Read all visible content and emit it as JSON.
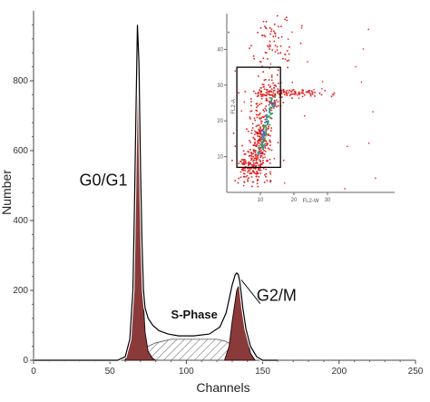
{
  "chart_data": [
    {
      "type": "area",
      "xlabel": "Channels",
      "ylabel": "Number",
      "xlim": [
        0,
        250
      ],
      "ylim": [
        0,
        1000
      ],
      "xticks": [
        0,
        50,
        100,
        150,
        200,
        250
      ],
      "yticks": [
        0,
        200,
        400,
        600,
        800
      ],
      "annotations": [
        {
          "text": "G0/G1",
          "x": 30,
          "y": 500
        },
        {
          "text": "S-Phase",
          "x": 90,
          "y": 120
        },
        {
          "text": "G2/M",
          "x": 146,
          "y": 170
        }
      ],
      "colors": {
        "peak_fill": "#8b3a3a",
        "peak_stroke": "#2a0d0d",
        "hatch": "#555555",
        "envelope": "#000000"
      },
      "series": [
        {
          "role": "envelope",
          "x": [
            0,
            55,
            60,
            63,
            65,
            66,
            67,
            68,
            69,
            70,
            71,
            72,
            73,
            75,
            78,
            82,
            88,
            95,
            105,
            115,
            122,
            126,
            128,
            130,
            132,
            133,
            134,
            135,
            136,
            137,
            139,
            142,
            146,
            150,
            160
          ],
          "y": [
            0,
            0,
            10,
            60,
            200,
            420,
            700,
            960,
            850,
            550,
            330,
            200,
            150,
            120,
            100,
            85,
            75,
            70,
            70,
            75,
            95,
            135,
            175,
            215,
            245,
            250,
            245,
            225,
            190,
            150,
            90,
            40,
            10,
            0,
            0
          ]
        },
        {
          "role": "G0/G1 peak",
          "x": [
            60,
            63,
            65,
            66,
            67,
            68,
            69,
            70,
            71,
            72,
            73,
            75,
            78,
            80
          ],
          "y": [
            0,
            50,
            190,
            400,
            680,
            940,
            820,
            520,
            300,
            160,
            80,
            25,
            5,
            0
          ]
        },
        {
          "role": "S-Phase",
          "x": [
            65,
            70,
            75,
            80,
            90,
            100,
            110,
            120,
            125,
            130,
            135,
            140
          ],
          "y": [
            0,
            20,
            40,
            50,
            60,
            60,
            60,
            60,
            55,
            45,
            30,
            0
          ]
        },
        {
          "role": "G2/M peak",
          "x": [
            125,
            128,
            130,
            132,
            133,
            134,
            135,
            136,
            137,
            139,
            142,
            145
          ],
          "y": [
            0,
            40,
            110,
            170,
            200,
            210,
            200,
            175,
            140,
            80,
            20,
            0
          ]
        }
      ]
    },
    {
      "type": "scatter",
      "xlabel": "FL2-W",
      "ylabel": "FL2-A",
      "xlim": [
        0,
        50
      ],
      "ylim": [
        0,
        50
      ],
      "xticks": [
        10,
        20,
        30
      ],
      "yticks": [
        10,
        20,
        30,
        40
      ],
      "point_color": "#e02020",
      "gate": {
        "x": [
          3,
          16
        ],
        "y": [
          7,
          35
        ]
      },
      "clusters": [
        {
          "cx": 7,
          "cy": 8,
          "sx": 2.5,
          "sy": 3,
          "n": 160
        },
        {
          "cx": 10,
          "cy": 15,
          "sx": 1.6,
          "sy": 5,
          "n": 220
        },
        {
          "cx": 13,
          "cy": 27,
          "sx": 1.8,
          "sy": 3,
          "n": 90
        },
        {
          "cx": 18,
          "cy": 28,
          "sx": 6,
          "sy": 0.6,
          "n": 110
        },
        {
          "cx": 14,
          "cy": 42,
          "sx": 3,
          "sy": 5,
          "n": 80
        }
      ]
    }
  ]
}
